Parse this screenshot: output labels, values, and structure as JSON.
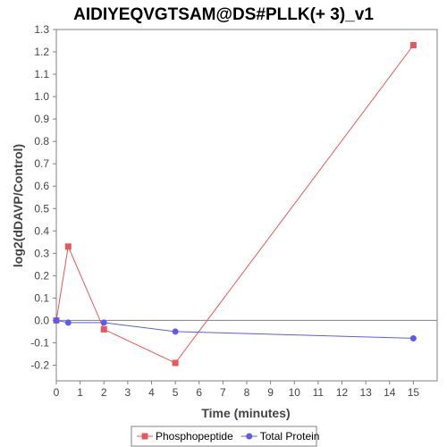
{
  "chart_data": {
    "type": "line",
    "title": "AIDIYEQVGTSAM@DS#PLLK(+ 3)_v1",
    "xlabel": "Time (minutes)",
    "ylabel": "log2(dDAVP/Control)",
    "xlim": [
      0,
      16
    ],
    "ylim": [
      -0.27,
      1.3
    ],
    "x_ticks": [
      0,
      1,
      2,
      3,
      4,
      5,
      6,
      7,
      8,
      9,
      10,
      11,
      12,
      13,
      14,
      15
    ],
    "y_ticks": [
      -0.2,
      -0.1,
      0.0,
      0.1,
      0.2,
      0.3,
      0.4,
      0.5,
      0.6,
      0.7,
      0.8,
      0.9,
      1.0,
      1.1,
      1.2,
      1.3
    ],
    "grid": false,
    "zero_line": true,
    "legend_position": "bottom",
    "series": [
      {
        "name": "Phosphopeptide",
        "color": "#e8585a",
        "marker": "square",
        "x": [
          0,
          0.5,
          2,
          5,
          15
        ],
        "y": [
          0.0,
          0.33,
          -0.04,
          -0.19,
          1.23
        ]
      },
      {
        "name": "Total Protein",
        "color": "#5b5bf0",
        "marker": "circle",
        "x": [
          0,
          0.5,
          2,
          5,
          15
        ],
        "y": [
          0.0,
          -0.01,
          -0.01,
          -0.05,
          -0.08
        ]
      }
    ]
  }
}
